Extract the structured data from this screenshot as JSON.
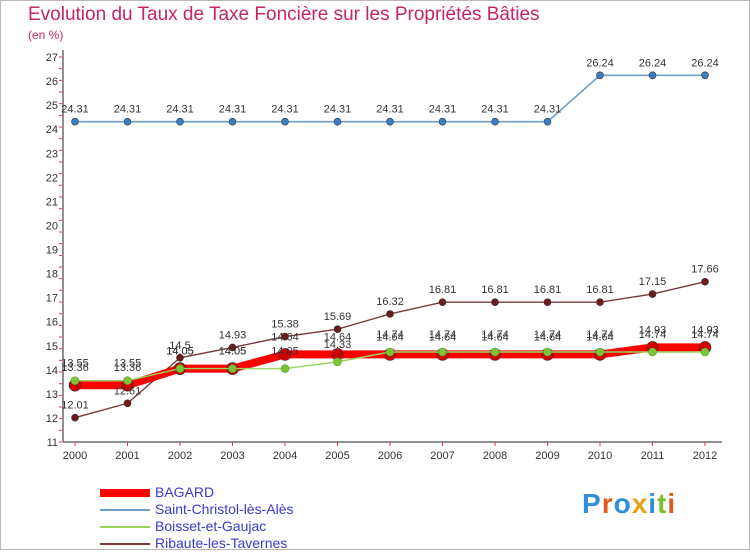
{
  "header": {
    "title": "Evolution du Taux de Taxe Foncière sur les Propriétés Bâties",
    "subtitle": "(en %)"
  },
  "logo": {
    "text": "Proxiti",
    "letter_colors": [
      "#2f8fd9",
      "#e05a1f",
      "#2f8fd9",
      "#e8a21a",
      "#2f8fd9",
      "#7bbf2e",
      "#e05a1f"
    ]
  },
  "chart_data": {
    "type": "line",
    "x": [
      "2000",
      "2001",
      "2002",
      "2003",
      "2004",
      "2005",
      "2006",
      "2007",
      "2008",
      "2009",
      "2010",
      "2011",
      "2012"
    ],
    "ylim": [
      11,
      27
    ],
    "yticks": [
      "11",
      "12",
      "13",
      "14",
      "15",
      "16",
      "17",
      "18",
      "19",
      "20",
      "21",
      "22",
      "23",
      "24",
      "25",
      "26",
      "27"
    ],
    "grid": false,
    "legend_position": "bottom-left",
    "series": [
      {
        "name": "Saint-Christol-lès-Alès",
        "color": "#6e9ec8",
        "marker": "#3a7fbf",
        "values": [
          24.31,
          24.31,
          24.31,
          24.31,
          24.31,
          24.31,
          24.31,
          24.31,
          24.31,
          24.31,
          26.24,
          26.24,
          26.24
        ],
        "labels": [
          "24.31",
          "24.31",
          "24.31",
          "24.31",
          "24.31",
          "24.31",
          "24.31",
          "24.31",
          "24.31",
          "24.31",
          "26.24",
          "26.24",
          "26.24"
        ]
      },
      {
        "name": "Ribaute-les-Tavernes",
        "color": "#7a3a3a",
        "marker": "#6b1c1c",
        "values": [
          12.01,
          12.61,
          14.5,
          14.93,
          15.38,
          15.69,
          16.32,
          16.81,
          16.81,
          16.81,
          16.81,
          17.15,
          17.66
        ],
        "labels": [
          "12.01",
          "12.61",
          "14.5",
          "14.93",
          "15.38",
          "15.69",
          "16.32",
          "16.81",
          "16.81",
          "16.81",
          "16.81",
          "17.15",
          "17.66"
        ]
      },
      {
        "name": "BAGARD",
        "color": "#ff0000",
        "marker": "#cc0000",
        "values": [
          13.36,
          13.36,
          14.05,
          14.05,
          14.64,
          14.64,
          14.64,
          14.64,
          14.64,
          14.64,
          14.64,
          14.93,
          14.93
        ],
        "labels": [
          "13.36",
          "13.36",
          "14.05",
          "14.05",
          "14.64",
          "14.64",
          "14.64",
          "14.64",
          "14.64",
          "14.64",
          "14.64",
          "14.93",
          "14.93"
        ]
      },
      {
        "name": "Boisset-et-Gaujac",
        "color": "#9ad45a",
        "marker": "#7cc23a",
        "values": [
          13.55,
          13.55,
          14.05,
          14.05,
          14.05,
          14.33,
          14.74,
          14.74,
          14.74,
          14.74,
          14.74,
          14.74,
          14.74
        ],
        "labels": [
          "13.55",
          "13.55",
          "14.05",
          "14.05",
          "14.05",
          "14.33",
          "14.74",
          "14.74",
          "14.74",
          "14.74",
          "14.74",
          "14.74",
          "14.74"
        ]
      }
    ],
    "legend": [
      "BAGARD",
      "Saint-Christol-lès-Alès",
      "Boisset-et-Gaujac",
      "Ribaute-les-Tavernes"
    ]
  }
}
